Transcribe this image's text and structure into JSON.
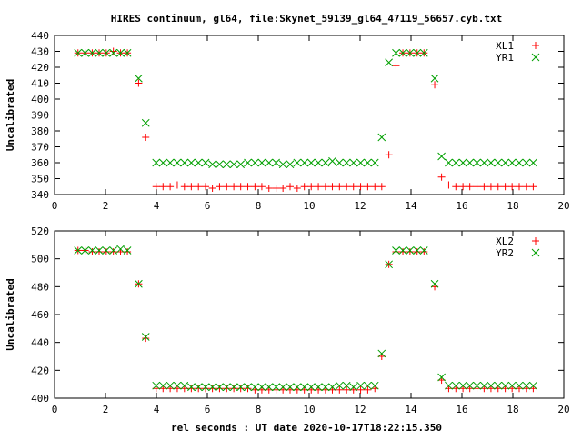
{
  "title": "HIRES continuum, gl64, file:Skynet_59139_gl64_47119_56657.cyb.txt",
  "xlabel": "rel seconds : UT date 2020-10-17T18:22:15.350",
  "colors": {
    "red_marker": "#ff0000",
    "green_marker": "#00a000",
    "axis": "#000000"
  },
  "chart_data": [
    {
      "type": "scatter",
      "ylabel": "Uncalibrated",
      "xlim": [
        0,
        20
      ],
      "ylim": [
        340,
        440
      ],
      "xticks": [
        0,
        2,
        4,
        6,
        8,
        10,
        12,
        14,
        16,
        18,
        20
      ],
      "yticks": [
        340,
        350,
        360,
        370,
        380,
        390,
        400,
        410,
        420,
        430,
        440
      ],
      "legend_position": "top-right",
      "series": [
        {
          "name": "XL1",
          "marker": "plus",
          "color": "#ff0000",
          "x": [
            0.92,
            1.2,
            1.48,
            1.75,
            2.03,
            2.31,
            2.59,
            2.86,
            3.3,
            3.58,
            3.99,
            4.26,
            4.54,
            4.82,
            5.1,
            5.37,
            5.65,
            5.93,
            6.2,
            6.48,
            6.76,
            7.04,
            7.31,
            7.59,
            7.87,
            8.14,
            8.42,
            8.7,
            8.97,
            9.25,
            9.53,
            9.81,
            10.08,
            10.36,
            10.64,
            10.91,
            11.19,
            11.47,
            11.74,
            12.02,
            12.3,
            12.58,
            12.85,
            13.13,
            13.41,
            13.68,
            13.96,
            14.24,
            14.51,
            14.93,
            15.2,
            15.48,
            15.76,
            16.04,
            16.31,
            16.59,
            16.87,
            17.14,
            17.42,
            17.7,
            17.97,
            18.25,
            18.53,
            18.8
          ],
          "y": [
            429,
            429,
            429,
            429,
            429,
            430,
            429,
            429,
            410,
            376,
            345,
            345,
            345,
            346,
            345,
            345,
            345,
            345,
            344,
            345,
            345,
            345,
            345,
            345,
            345,
            345,
            344,
            344,
            344,
            345,
            344,
            345,
            345,
            345,
            345,
            345,
            345,
            345,
            345,
            345,
            345,
            345,
            345,
            365,
            421,
            429,
            429,
            429,
            429,
            409,
            351,
            346,
            345,
            345,
            345,
            345,
            345,
            345,
            345,
            345,
            345,
            345,
            345,
            345
          ]
        },
        {
          "name": "YR1",
          "marker": "cross",
          "color": "#00a000",
          "x": [
            0.92,
            1.2,
            1.48,
            1.75,
            2.03,
            2.31,
            2.59,
            2.86,
            3.3,
            3.58,
            3.99,
            4.26,
            4.54,
            4.82,
            5.1,
            5.37,
            5.65,
            5.93,
            6.2,
            6.48,
            6.76,
            7.04,
            7.31,
            7.59,
            7.87,
            8.14,
            8.42,
            8.7,
            8.97,
            9.25,
            9.53,
            9.81,
            10.08,
            10.36,
            10.64,
            10.91,
            11.19,
            11.47,
            11.74,
            12.02,
            12.3,
            12.58,
            12.85,
            13.13,
            13.41,
            13.68,
            13.96,
            14.24,
            14.51,
            14.93,
            15.2,
            15.48,
            15.76,
            16.04,
            16.31,
            16.59,
            16.87,
            17.14,
            17.42,
            17.7,
            17.97,
            18.25,
            18.53,
            18.8
          ],
          "y": [
            429,
            429,
            429,
            429,
            429,
            429,
            429,
            429,
            413,
            385,
            360,
            360,
            360,
            360,
            360,
            360,
            360,
            360,
            359,
            359,
            359,
            359,
            359,
            360,
            360,
            360,
            360,
            360,
            359,
            359,
            360,
            360,
            360,
            360,
            360,
            361,
            360,
            360,
            360,
            360,
            360,
            360,
            376,
            423,
            429,
            429,
            429,
            429,
            429,
            413,
            364,
            360,
            360,
            360,
            360,
            360,
            360,
            360,
            360,
            360,
            360,
            360,
            360,
            360
          ]
        }
      ]
    },
    {
      "type": "scatter",
      "ylabel": "Uncalibrated",
      "xlim": [
        0,
        20
      ],
      "ylim": [
        400,
        520
      ],
      "xticks": [
        0,
        2,
        4,
        6,
        8,
        10,
        12,
        14,
        16,
        18,
        20
      ],
      "yticks": [
        400,
        420,
        440,
        460,
        480,
        500,
        520
      ],
      "legend_position": "top-right",
      "series": [
        {
          "name": "XL2",
          "marker": "plus",
          "color": "#ff0000",
          "x": [
            0.92,
            1.2,
            1.48,
            1.75,
            2.03,
            2.31,
            2.59,
            2.86,
            3.3,
            3.58,
            3.99,
            4.26,
            4.54,
            4.82,
            5.1,
            5.37,
            5.65,
            5.93,
            6.2,
            6.48,
            6.76,
            7.04,
            7.31,
            7.59,
            7.87,
            8.14,
            8.42,
            8.7,
            8.97,
            9.25,
            9.53,
            9.81,
            10.08,
            10.36,
            10.64,
            10.91,
            11.19,
            11.47,
            11.74,
            12.02,
            12.3,
            12.58,
            12.85,
            13.13,
            13.41,
            13.68,
            13.96,
            14.24,
            14.51,
            14.93,
            15.2,
            15.48,
            15.76,
            16.04,
            16.31,
            16.59,
            16.87,
            17.14,
            17.42,
            17.7,
            17.97,
            18.25,
            18.53,
            18.8
          ],
          "y": [
            506,
            506,
            505,
            505,
            505,
            505,
            505,
            505,
            482,
            443,
            407,
            407,
            407,
            407,
            407,
            407,
            407,
            407,
            407,
            407,
            407,
            407,
            407,
            407,
            406,
            406,
            406,
            406,
            406,
            406,
            406,
            406,
            406,
            406,
            406,
            406,
            406,
            406,
            406,
            406,
            406,
            407,
            430,
            496,
            505,
            505,
            505,
            505,
            505,
            480,
            413,
            407,
            407,
            407,
            407,
            407,
            407,
            407,
            407,
            407,
            407,
            407,
            407,
            407
          ]
        },
        {
          "name": "YR2",
          "marker": "cross",
          "color": "#00a000",
          "x": [
            0.92,
            1.2,
            1.48,
            1.75,
            2.03,
            2.31,
            2.59,
            2.86,
            3.3,
            3.58,
            3.99,
            4.26,
            4.54,
            4.82,
            5.1,
            5.37,
            5.65,
            5.93,
            6.2,
            6.48,
            6.76,
            7.04,
            7.31,
            7.59,
            7.87,
            8.14,
            8.42,
            8.7,
            8.97,
            9.25,
            9.53,
            9.81,
            10.08,
            10.36,
            10.64,
            10.91,
            11.19,
            11.47,
            11.74,
            12.02,
            12.3,
            12.58,
            12.85,
            13.13,
            13.41,
            13.68,
            13.96,
            14.24,
            14.51,
            14.93,
            15.2,
            15.48,
            15.76,
            16.04,
            16.31,
            16.59,
            16.87,
            17.14,
            17.42,
            17.7,
            17.97,
            18.25,
            18.53,
            18.8
          ],
          "y": [
            506,
            506,
            506,
            506,
            506,
            506,
            507,
            506,
            482,
            444,
            409,
            409,
            409,
            409,
            409,
            408,
            408,
            408,
            408,
            408,
            408,
            408,
            408,
            408,
            408,
            408,
            408,
            408,
            408,
            408,
            408,
            408,
            408,
            408,
            408,
            408,
            409,
            409,
            408,
            409,
            409,
            409,
            432,
            496,
            506,
            506,
            506,
            506,
            506,
            482,
            415,
            409,
            409,
            409,
            409,
            409,
            409,
            409,
            409,
            409,
            409,
            409,
            409,
            409
          ]
        }
      ]
    }
  ]
}
